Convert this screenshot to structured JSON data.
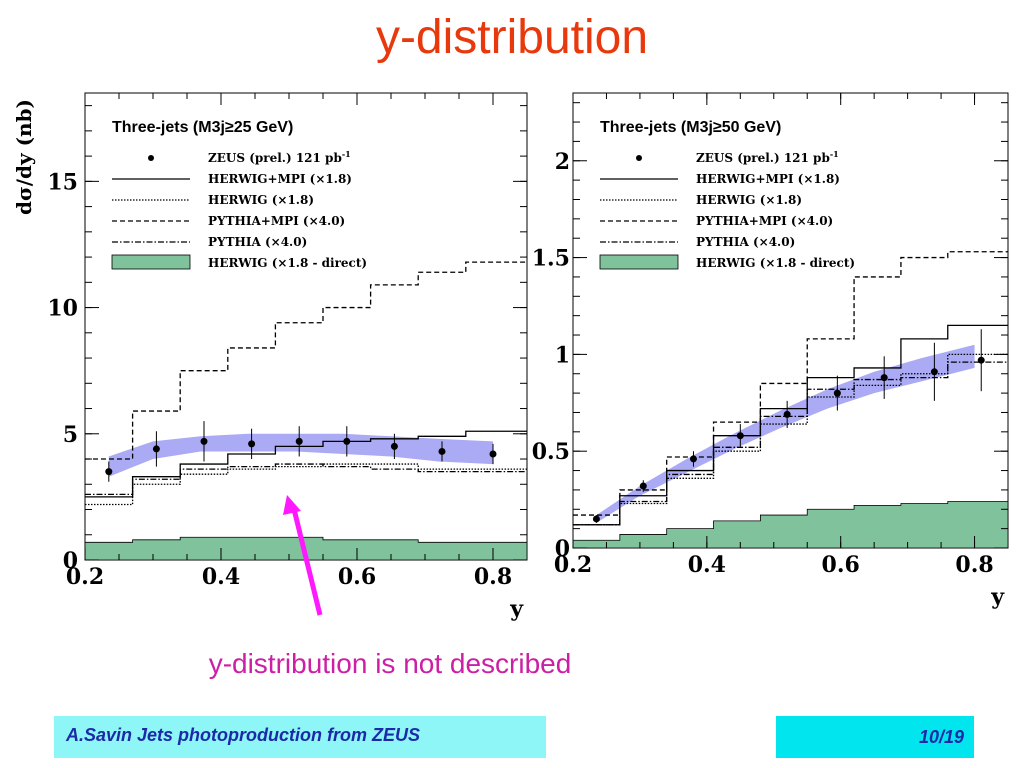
{
  "slide": {
    "title": "y-distribution",
    "y_axis_label": "dσ/dy (nb)",
    "annotation": "y-distribution is not described",
    "footer_left": "A.Savin Jets photoproduction from ZEUS",
    "footer_right": "10/19",
    "arrow_color": "#ff19ff"
  },
  "legend": {
    "entries": [
      {
        "label": "ZEUS (prel.) 121 pb",
        "superscript": "-1",
        "style": "marker"
      },
      {
        "label": "HERWIG+MPI (×1.8)",
        "style": "solid"
      },
      {
        "label": "HERWIG (×1.8)",
        "style": "dotted"
      },
      {
        "label": "PYTHIA+MPI (×4.0)",
        "style": "dashed"
      },
      {
        "label": "PYTHIA (×4.0)",
        "style": "dashdot"
      },
      {
        "label": "HERWIG (×1.8 - direct)",
        "style": "fill"
      }
    ]
  },
  "colors": {
    "band": "#aaaaf5",
    "direct_fill": "#7fc29b",
    "title": "#e8380c",
    "annotation": "#cc1fa6",
    "footer_left_bg": "#8ef6f7",
    "footer_right_bg": "#00e5ee"
  },
  "chart_data": [
    {
      "type": "line",
      "title": "Three-jets (M3j≥25 GeV)",
      "xlabel": "y",
      "ylabel": "dσ/dy (nb)",
      "xlim": [
        0.2,
        0.85
      ],
      "ylim": [
        0,
        18.5
      ],
      "xticks": [
        "0.2",
        "0.4",
        "0.6",
        "0.8"
      ],
      "yticks": [
        "0",
        "5",
        "10",
        "15"
      ],
      "bin_edges": [
        0.2,
        0.27,
        0.34,
        0.41,
        0.48,
        0.55,
        0.62,
        0.69,
        0.76,
        0.85
      ],
      "data": {
        "name": "ZEUS (prel.) 121 pb-1",
        "x": [
          0.235,
          0.305,
          0.375,
          0.445,
          0.515,
          0.585,
          0.655,
          0.725,
          0.8
        ],
        "y": [
          3.5,
          4.4,
          4.7,
          4.6,
          4.7,
          4.7,
          4.5,
          4.3,
          4.2
        ],
        "err": [
          0.4,
          0.7,
          0.8,
          0.6,
          0.6,
          0.6,
          0.5,
          0.4,
          0.4
        ]
      },
      "band": {
        "name": "HERWIG+MPI band",
        "x": [
          0.235,
          0.3,
          0.37,
          0.44,
          0.51,
          0.58,
          0.65,
          0.72,
          0.8
        ],
        "low": [
          3.3,
          4.0,
          4.3,
          4.3,
          4.3,
          4.2,
          4.1,
          3.9,
          3.8
        ],
        "high": [
          4.1,
          4.7,
          4.9,
          5.0,
          5.0,
          5.0,
          4.9,
          4.8,
          4.7
        ]
      },
      "series": [
        {
          "name": "HERWIG+MPI (×1.8)",
          "style": "solid",
          "values": [
            2.5,
            3.3,
            3.8,
            4.2,
            4.5,
            4.7,
            4.8,
            4.9,
            5.1
          ]
        },
        {
          "name": "HERWIG (×1.8)",
          "style": "dotted",
          "values": [
            2.2,
            3.0,
            3.4,
            3.6,
            3.7,
            3.8,
            3.8,
            3.6,
            3.6
          ]
        },
        {
          "name": "PYTHIA+MPI (×4.0)",
          "style": "dashed",
          "values": [
            4.0,
            5.9,
            7.5,
            8.4,
            9.4,
            10.0,
            10.9,
            11.4,
            11.8
          ]
        },
        {
          "name": "PYTHIA (×4.0)",
          "style": "dashdot",
          "values": [
            2.6,
            3.2,
            3.6,
            3.7,
            3.8,
            3.7,
            3.6,
            3.5,
            3.5
          ]
        }
      ],
      "direct": {
        "name": "HERWIG (×1.8 - direct)",
        "values": [
          0.7,
          0.8,
          0.9,
          0.9,
          0.9,
          0.8,
          0.8,
          0.7,
          0.7
        ]
      }
    },
    {
      "type": "line",
      "title": "Three-jets (M3j≥50 GeV)",
      "xlabel": "y",
      "ylabel": "",
      "xlim": [
        0.2,
        0.85
      ],
      "ylim": [
        0,
        2.35
      ],
      "xticks": [
        "0.2",
        "0.4",
        "0.6",
        "0.8"
      ],
      "yticks": [
        "0",
        "0.5",
        "1",
        "1.5",
        "2"
      ],
      "bin_edges": [
        0.2,
        0.27,
        0.34,
        0.41,
        0.48,
        0.55,
        0.62,
        0.69,
        0.76,
        0.85
      ],
      "data": {
        "name": "ZEUS (prel.) 121 pb-1",
        "x": [
          0.235,
          0.305,
          0.38,
          0.45,
          0.52,
          0.595,
          0.665,
          0.74,
          0.81
        ],
        "y": [
          0.15,
          0.32,
          0.46,
          0.58,
          0.69,
          0.8,
          0.88,
          0.91,
          0.97
        ],
        "err": [
          0.02,
          0.03,
          0.04,
          0.06,
          0.07,
          0.09,
          0.11,
          0.15,
          0.16
        ]
      },
      "band": {
        "name": "HERWIG+MPI band",
        "x": [
          0.235,
          0.3,
          0.37,
          0.44,
          0.51,
          0.58,
          0.65,
          0.72,
          0.8
        ],
        "low": [
          0.13,
          0.27,
          0.39,
          0.51,
          0.62,
          0.72,
          0.8,
          0.86,
          0.93
        ],
        "high": [
          0.17,
          0.32,
          0.46,
          0.59,
          0.71,
          0.82,
          0.91,
          0.98,
          1.05
        ]
      },
      "series": [
        {
          "name": "HERWIG+MPI (×1.8)",
          "style": "solid",
          "values": [
            0.12,
            0.27,
            0.4,
            0.58,
            0.72,
            0.88,
            0.93,
            1.08,
            1.15
          ]
        },
        {
          "name": "HERWIG (×1.8)",
          "style": "dotted",
          "values": [
            0.12,
            0.23,
            0.36,
            0.5,
            0.64,
            0.78,
            0.84,
            0.9,
            1.0
          ]
        },
        {
          "name": "PYTHIA+MPI (×4.0)",
          "style": "dashed",
          "values": [
            0.17,
            0.3,
            0.47,
            0.65,
            0.85,
            1.08,
            1.4,
            1.5,
            1.53
          ]
        },
        {
          "name": "PYTHIA (×4.0)",
          "style": "dashdot",
          "values": [
            0.12,
            0.24,
            0.38,
            0.52,
            0.68,
            0.82,
            0.87,
            0.88,
            0.96
          ]
        }
      ],
      "direct": {
        "name": "HERWIG (×1.8 - direct)",
        "values": [
          0.04,
          0.07,
          0.1,
          0.14,
          0.17,
          0.2,
          0.22,
          0.23,
          0.24
        ]
      }
    }
  ]
}
